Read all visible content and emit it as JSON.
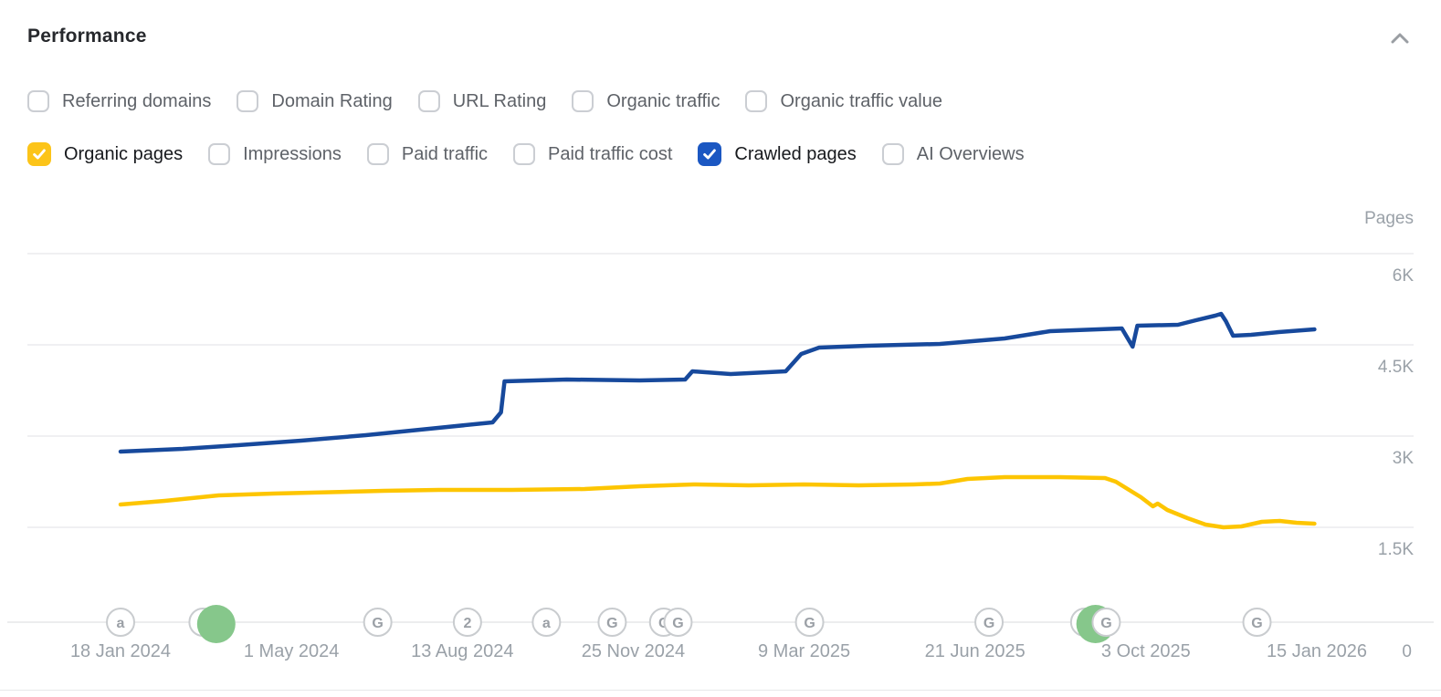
{
  "header": {
    "title": "Performance",
    "collapse_icon": "chevron-up"
  },
  "metric_toggles": {
    "row1": [
      {
        "label": "Referring domains",
        "checked": false
      },
      {
        "label": "Domain Rating",
        "checked": false
      },
      {
        "label": "URL Rating",
        "checked": false
      },
      {
        "label": "Organic traffic",
        "checked": false
      },
      {
        "label": "Organic traffic value",
        "checked": false
      }
    ],
    "row2": [
      {
        "label": "Organic pages",
        "checked": true,
        "color": "#fcc419"
      },
      {
        "label": "Impressions",
        "checked": false
      },
      {
        "label": "Paid traffic",
        "checked": false
      },
      {
        "label": "Paid traffic cost",
        "checked": false
      },
      {
        "label": "Crawled pages",
        "checked": true,
        "color": "#1b57c2"
      },
      {
        "label": "AI Overviews",
        "checked": false
      }
    ]
  },
  "chart_data": {
    "type": "line",
    "unit_label": "Pages",
    "grid": true,
    "legend_position": "none",
    "x_range": [
      "18 Jan 2024",
      "15 Jan 2026"
    ],
    "x_tick_labels": [
      "18 Jan 2024",
      "1 May 2024",
      "13 Aug 2024",
      "25 Nov 2024",
      "9 Mar 2025",
      "21 Jun 2025",
      "3 Oct 2025",
      "15 Jan 2026"
    ],
    "y_ticks": [
      {
        "label": "6K",
        "value": 6000
      },
      {
        "label": "4.5K",
        "value": 4500
      },
      {
        "label": "3K",
        "value": 3000
      },
      {
        "label": "1.5K",
        "value": 1500
      },
      {
        "label": "0",
        "value": 0
      }
    ],
    "ylim": [
      0,
      6500
    ],
    "series": [
      {
        "name": "Crawled pages",
        "color": "#17499c",
        "points": [
          [
            0,
            2745
          ],
          [
            5.2,
            2790
          ],
          [
            9.8,
            2850
          ],
          [
            15.1,
            2925
          ],
          [
            20.5,
            3015
          ],
          [
            25.8,
            3120
          ],
          [
            31.1,
            3225
          ],
          [
            31.8,
            3390
          ],
          [
            32.1,
            3900
          ],
          [
            37.3,
            3930
          ],
          [
            43.4,
            3915
          ],
          [
            47.2,
            3930
          ],
          [
            47.8,
            4065
          ],
          [
            51.0,
            4020
          ],
          [
            55.6,
            4065
          ],
          [
            56.9,
            4350
          ],
          [
            58.4,
            4455
          ],
          [
            62.4,
            4485
          ],
          [
            68.5,
            4515
          ],
          [
            73.9,
            4605
          ],
          [
            77.7,
            4725
          ],
          [
            83.7,
            4770
          ],
          [
            84.6,
            4470
          ],
          [
            85.0,
            4815
          ],
          [
            88.4,
            4830
          ],
          [
            89.9,
            4905
          ],
          [
            91.5,
            4980
          ],
          [
            92.0,
            5010
          ],
          [
            92.4,
            4890
          ],
          [
            93.0,
            4650
          ],
          [
            94.5,
            4665
          ],
          [
            96.8,
            4710
          ],
          [
            99.8,
            4755
          ]
        ]
      },
      {
        "name": "Organic pages",
        "color": "#fdc500",
        "points": [
          [
            0,
            1875
          ],
          [
            3.7,
            1935
          ],
          [
            8.2,
            2025
          ],
          [
            12.8,
            2055
          ],
          [
            22.0,
            2100
          ],
          [
            26.6,
            2115
          ],
          [
            32.7,
            2115
          ],
          [
            38.8,
            2130
          ],
          [
            43.4,
            2175
          ],
          [
            47.9,
            2205
          ],
          [
            52.5,
            2190
          ],
          [
            57.1,
            2205
          ],
          [
            61.7,
            2190
          ],
          [
            66.3,
            2205
          ],
          [
            68.5,
            2220
          ],
          [
            70.8,
            2295
          ],
          [
            73.9,
            2325
          ],
          [
            78.5,
            2325
          ],
          [
            82.3,
            2310
          ],
          [
            83.2,
            2250
          ],
          [
            85.3,
            1995
          ],
          [
            86.3,
            1845
          ],
          [
            86.7,
            1890
          ],
          [
            87.5,
            1785
          ],
          [
            89.2,
            1650
          ],
          [
            90.7,
            1545
          ],
          [
            92.2,
            1500
          ],
          [
            93.7,
            1515
          ],
          [
            95.4,
            1590
          ],
          [
            96.9,
            1605
          ],
          [
            98.3,
            1575
          ],
          [
            99.8,
            1560
          ]
        ]
      }
    ],
    "event_markers": [
      {
        "x_pct": 0.0,
        "glyph": "a",
        "style": "outline"
      },
      {
        "x_pct": 6.9,
        "glyph": "2",
        "style": "outline"
      },
      {
        "x_pct": 8.0,
        "glyph": "",
        "style": "green"
      },
      {
        "x_pct": 21.5,
        "glyph": "G",
        "style": "outline"
      },
      {
        "x_pct": 29.0,
        "glyph": "2",
        "style": "outline"
      },
      {
        "x_pct": 35.6,
        "glyph": "a",
        "style": "outline"
      },
      {
        "x_pct": 41.1,
        "glyph": "G",
        "style": "outline"
      },
      {
        "x_pct": 45.4,
        "glyph": "C",
        "style": "outline"
      },
      {
        "x_pct": 46.6,
        "glyph": "G",
        "style": "outline"
      },
      {
        "x_pct": 57.6,
        "glyph": "G",
        "style": "outline"
      },
      {
        "x_pct": 72.6,
        "glyph": "G",
        "style": "outline"
      },
      {
        "x_pct": 80.6,
        "glyph": "G",
        "style": "outline"
      },
      {
        "x_pct": 81.5,
        "glyph": "",
        "style": "green"
      },
      {
        "x_pct": 82.4,
        "glyph": "G",
        "style": "outline"
      },
      {
        "x_pct": 95.0,
        "glyph": "G",
        "style": "outline"
      }
    ]
  },
  "colors": {
    "grid_line": "#ececee",
    "axis_line": "#e6e7e9",
    "tick_text": "#9aa1a8",
    "marker_stroke": "#c9cccf",
    "marker_glyph": "#9ba0a6",
    "marker_green": "#86c78b",
    "chevron": "#9a9ea3"
  }
}
